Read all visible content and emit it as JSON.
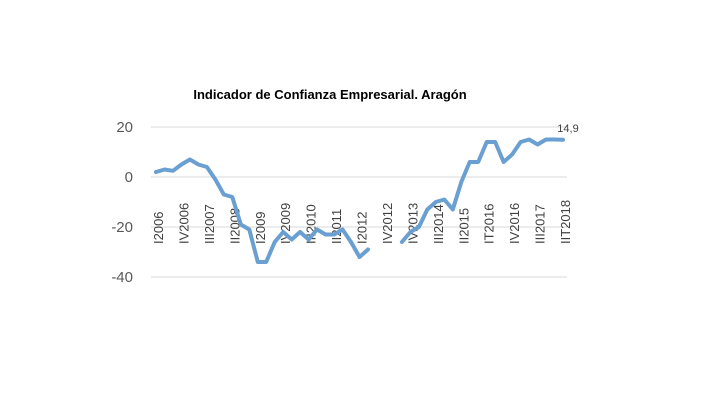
{
  "chart_data": {
    "type": "line",
    "title": "Indicador de Confianza Empresarial. Aragón",
    "xlabel": "",
    "ylabel": "",
    "ylim": [
      -40,
      20
    ],
    "yticks": [
      20,
      0,
      -20,
      -40
    ],
    "grid": true,
    "legend": "none",
    "x_tick_labels": [
      "I2006",
      "IV2006",
      "III2007",
      "II2008",
      "I2009",
      "IV2009",
      "III2010",
      "II2011",
      "I2012",
      "IV2012",
      "IV2013",
      "III2014",
      "II2015",
      "IT2016",
      "IV2016",
      "III2017",
      "IIT2018"
    ],
    "series": [
      {
        "color": "#6a9fd1",
        "values": [
          2,
          3,
          2.5,
          5,
          7,
          5,
          4,
          -1,
          -7,
          -8,
          -19,
          -21,
          -34,
          -34,
          -26,
          -22,
          -25,
          -22,
          -25,
          -21,
          -23,
          -23,
          -21,
          -26,
          -32,
          -29,
          null,
          null,
          null,
          -26,
          -22,
          -20,
          -13,
          -10,
          -9,
          -13,
          -2,
          6,
          6,
          14,
          14,
          6,
          9,
          14,
          15,
          13,
          15,
          15,
          14.9
        ]
      }
    ],
    "data_labels": [
      {
        "point": "last",
        "text": "14,9"
      }
    ]
  }
}
